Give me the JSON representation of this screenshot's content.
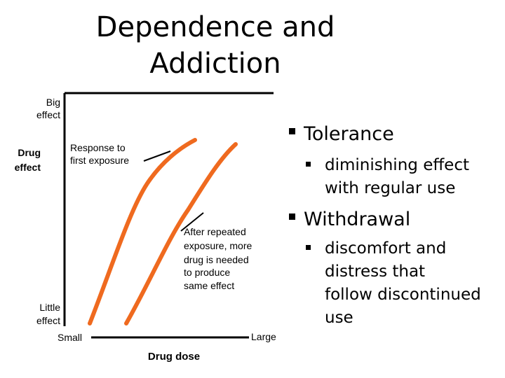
{
  "header": {
    "title": [
      "Dependence and",
      "Addiction"
    ]
  },
  "diagram": {
    "y_axis_top": [
      "Big",
      "effect"
    ],
    "y_axis_label": [
      "Drug",
      "effect"
    ],
    "y_axis_bottom": [
      "Little",
      "effect"
    ],
    "x_axis_left": "Small",
    "x_axis_right": "Large",
    "x_axis_label": "Drug dose",
    "curve_1_label": [
      "Response to",
      "first exposure"
    ],
    "curve_2_label": [
      "After repeated",
      "exposure, more",
      "drug is needed",
      "to produce",
      "same effect"
    ]
  },
  "bullets": [
    {
      "text": "Tolerance",
      "sub": [
        "diminishing effect",
        "with regular use"
      ]
    },
    {
      "text": "Withdrawal",
      "sub": [
        "discomfort and",
        "distress that",
        "follow discontinued",
        "use"
      ]
    }
  ]
}
